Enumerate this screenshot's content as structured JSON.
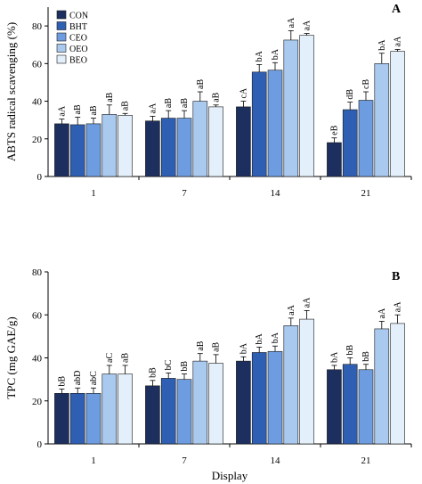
{
  "chart_data": [
    {
      "type": "bar",
      "panel_label": "A",
      "title": "",
      "xlabel": "",
      "ylabel": "ABTS radical scavenging (%)",
      "ylim": [
        0,
        90
      ],
      "yticks": [
        0,
        20,
        40,
        60,
        80
      ],
      "categories": [
        "1",
        "7",
        "14",
        "21"
      ],
      "legend_position": "top-left",
      "series": [
        {
          "name": "CON",
          "color": "#1c2f5e",
          "values": [
            28,
            29.5,
            37,
            18
          ],
          "errors": [
            2.5,
            2.5,
            3,
            2.5
          ],
          "labels": [
            "aA",
            "aA",
            "cA",
            "eB"
          ]
        },
        {
          "name": "BHT",
          "color": "#2f5fb3",
          "values": [
            27.5,
            31,
            55.5,
            35.5
          ],
          "errors": [
            4,
            4,
            4,
            4
          ],
          "labels": [
            "aB",
            "aB",
            "bA",
            "dB"
          ]
        },
        {
          "name": "CEO",
          "color": "#6d9de0",
          "values": [
            28,
            31,
            56.5,
            40.5
          ],
          "errors": [
            3,
            4,
            4,
            4.5
          ],
          "labels": [
            "aB",
            "aB",
            "bA",
            "cB"
          ]
        },
        {
          "name": "OEO",
          "color": "#a9c9ef",
          "values": [
            33,
            40,
            72.5,
            60
          ],
          "errors": [
            5,
            5,
            5,
            5.5
          ],
          "labels": [
            "aB",
            "aB",
            "aA",
            "bA"
          ]
        },
        {
          "name": "BEO",
          "color": "#e3effa",
          "values": [
            32.5,
            37,
            75,
            66.5
          ],
          "errors": [
            1,
            1,
            1,
            1
          ],
          "labels": [
            "aB",
            "aB",
            "aA",
            "aA"
          ]
        }
      ]
    },
    {
      "type": "bar",
      "panel_label": "B",
      "title": "",
      "xlabel": "Display",
      "ylabel": "TPC (mg GAE/g)",
      "ylim": [
        0,
        80
      ],
      "yticks": [
        0,
        20,
        40,
        60,
        80
      ],
      "categories": [
        "1",
        "7",
        "14",
        "21"
      ],
      "series": [
        {
          "name": "CON",
          "color": "#1c2f5e",
          "values": [
            23.5,
            27,
            38.5,
            34.5
          ],
          "errors": [
            2,
            2.5,
            2,
            2
          ],
          "labels": [
            "bB",
            "bB",
            "bA",
            "bA"
          ]
        },
        {
          "name": "BHT",
          "color": "#2f5fb3",
          "values": [
            23.5,
            30.5,
            42.5,
            37
          ],
          "errors": [
            2.5,
            2.5,
            2.5,
            3
          ],
          "labels": [
            "abD",
            "bC",
            "bA",
            "bB"
          ]
        },
        {
          "name": "CEO",
          "color": "#6d9de0",
          "values": [
            23.5,
            30,
            43,
            34.5
          ],
          "errors": [
            2.5,
            2.5,
            2.5,
            2.5
          ],
          "labels": [
            "abC",
            "bB",
            "bA",
            "bB"
          ]
        },
        {
          "name": "OEO",
          "color": "#a9c9ef",
          "values": [
            32.5,
            38.5,
            55,
            53.5
          ],
          "errors": [
            4,
            3.5,
            3.5,
            3.5
          ],
          "labels": [
            "aC",
            "aB",
            "aA",
            "aA"
          ]
        },
        {
          "name": "BEO",
          "color": "#e3effa",
          "values": [
            32.5,
            37.5,
            58,
            56
          ],
          "errors": [
            4,
            4,
            4,
            4
          ],
          "labels": [
            "aB",
            "aB",
            "aA",
            "aA"
          ]
        }
      ]
    }
  ]
}
